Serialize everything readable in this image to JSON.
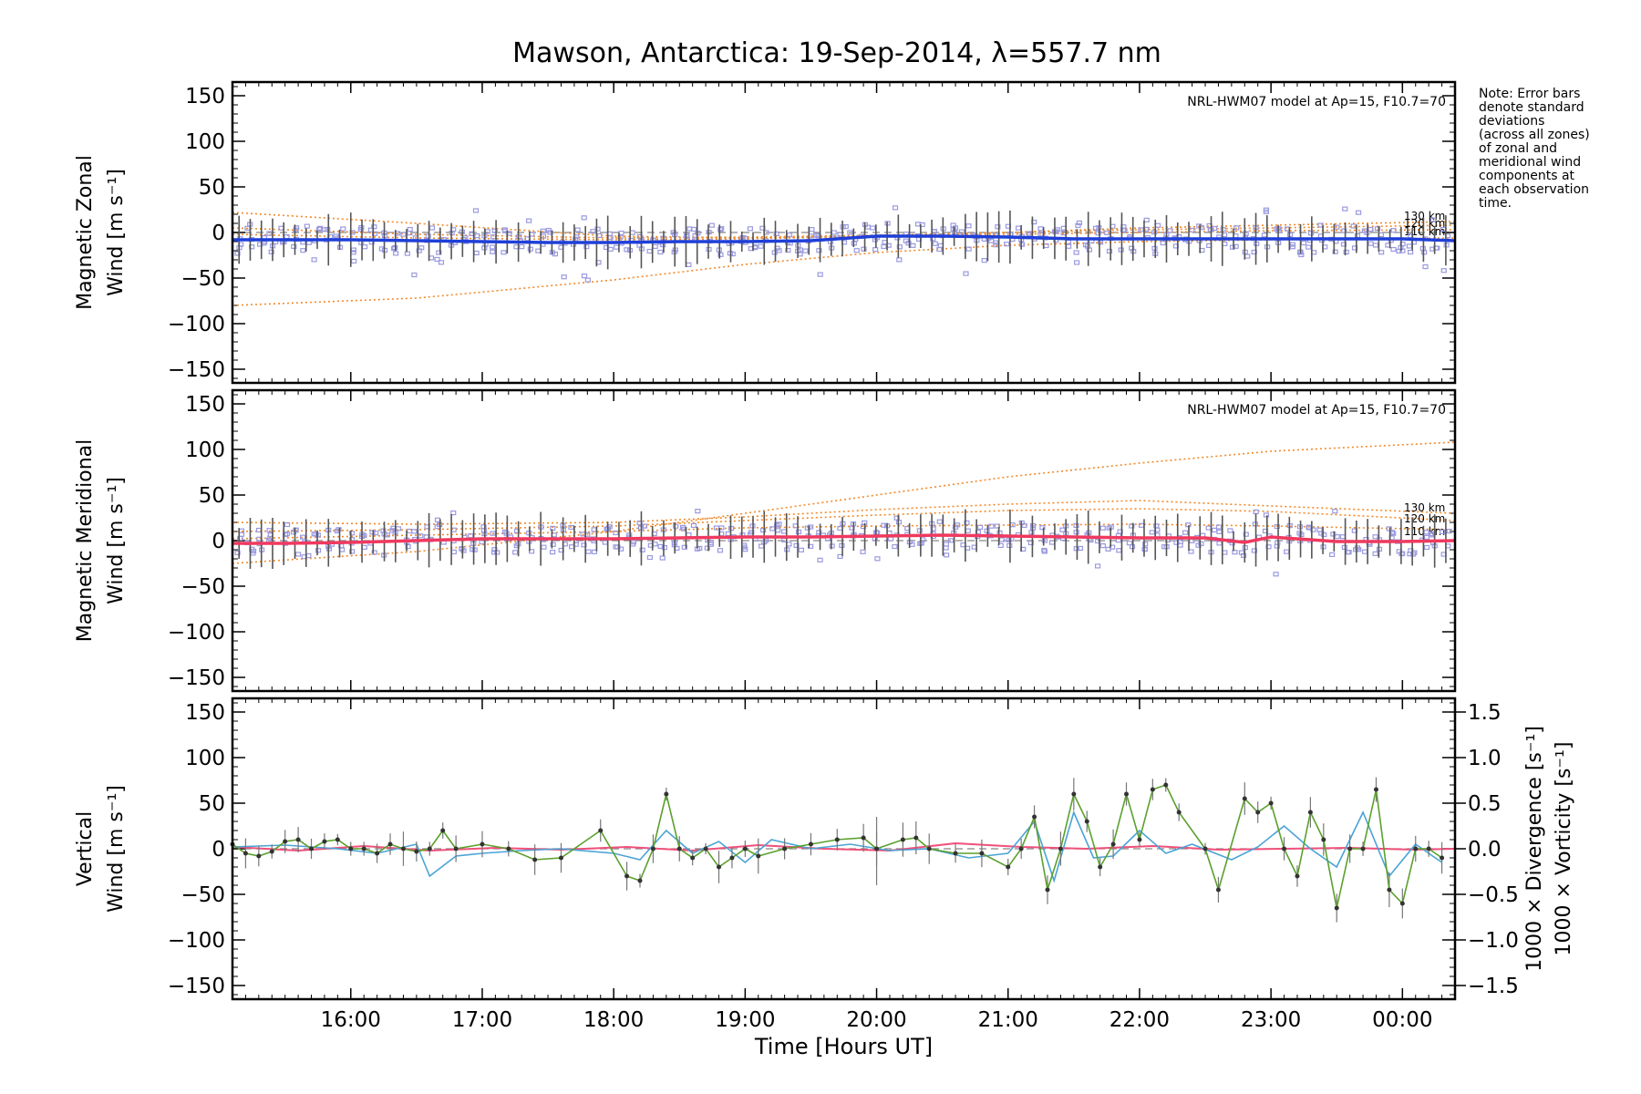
{
  "title": "Mawson, Antarctica: 19-Sep-2014, λ=557.7 nm",
  "note_lines": [
    "Note: Error bars",
    "denote standard",
    "deviations",
    "(across all zones)",
    "of zonal and",
    "meridional wind",
    "components at",
    "each observation",
    "time."
  ],
  "colors": {
    "zonal": "#1f3fd8",
    "meridional": "#f0395f",
    "model": "#f28a2a",
    "vertical": "#5aa02c",
    "divergence": "#4aa3d6",
    "vorticity": "#f0507a",
    "zone_points": "#9a9ae0"
  },
  "chart_data": [
    {
      "type": "line",
      "panel": "zonal",
      "ylabel_line1": "Magnetic Zonal",
      "ylabel_line2": "Wind [m s⁻¹]",
      "ylim": [
        -165,
        165
      ],
      "yticks": [
        -150,
        -100,
        -50,
        0,
        50,
        100,
        150
      ],
      "model_label": "NRL-HWM07 model at Ap=15, F10.7=70",
      "model_alt_labels": [
        "130 km",
        "120 km",
        "110 km"
      ],
      "series": [
        {
          "x": [
            15.1,
            15.5,
            16.0,
            16.5,
            17.0,
            17.5,
            18.0,
            18.5,
            19.0,
            19.5,
            20.0,
            20.5,
            21.0,
            21.5,
            22.0,
            22.5,
            23.0,
            23.5,
            24.0,
            24.4
          ],
          "values": [
            -8,
            -8,
            -8,
            -9,
            -10,
            -11,
            -11,
            -10,
            -10,
            -9,
            -4,
            -4,
            -5,
            -7,
            -7,
            -7,
            -7,
            -7,
            -7,
            -9
          ]
        }
      ],
      "model_curves": [
        {
          "x": [
            15.1,
            16.5,
            18.0,
            19.0,
            20.0,
            21.0,
            22.0,
            23.0,
            24.4
          ],
          "values": [
            -80,
            -72,
            -52,
            -35,
            -22,
            -14,
            -10,
            -8,
            -6
          ]
        },
        {
          "x": [
            15.1,
            16.5,
            18.0,
            19.0,
            20.0,
            21.0,
            22.0,
            23.0,
            24.4
          ],
          "values": [
            22,
            10,
            -4,
            -6,
            -4,
            0,
            5,
            8,
            12
          ]
        },
        {
          "x": [
            15.1,
            16.5,
            18.0,
            19.0,
            20.0,
            21.0,
            22.0,
            23.0,
            24.4
          ],
          "values": [
            5,
            -2,
            -6,
            -5,
            -3,
            0,
            3,
            5,
            8
          ]
        },
        {
          "x": [
            15.1,
            16.5,
            18.0,
            19.0,
            20.0,
            21.0,
            22.0,
            23.0,
            24.4
          ],
          "values": [
            -2,
            -6,
            -8,
            -7,
            -4,
            -2,
            0,
            2,
            3
          ]
        }
      ]
    },
    {
      "type": "line",
      "panel": "meridional",
      "ylabel_line1": "Magnetic Meridional",
      "ylabel_line2": "Wind [m s⁻¹]",
      "ylim": [
        -165,
        165
      ],
      "yticks": [
        -150,
        -100,
        -50,
        0,
        50,
        100,
        150
      ],
      "model_label": "NRL-HWM07 model at Ap=15, F10.7=70",
      "model_alt_labels": [
        "130 km",
        "120 km",
        "110 km"
      ],
      "series": [
        {
          "x": [
            15.1,
            15.5,
            16.0,
            16.5,
            17.0,
            17.5,
            18.0,
            18.5,
            19.0,
            19.5,
            20.0,
            20.5,
            21.0,
            21.5,
            22.0,
            22.5,
            22.8,
            23.0,
            23.5,
            24.0,
            24.4
          ],
          "values": [
            -3,
            -3,
            -2,
            0,
            2,
            2,
            2,
            3,
            4,
            4,
            5,
            6,
            5,
            4,
            3,
            3,
            -2,
            4,
            -1,
            -1,
            0
          ]
        }
      ],
      "model_curves": [
        {
          "x": [
            15.1,
            16.5,
            18.0,
            19.0,
            20.0,
            21.0,
            22.0,
            23.0,
            24.4
          ],
          "values": [
            -25,
            -12,
            10,
            30,
            50,
            70,
            85,
            98,
            108
          ]
        },
        {
          "x": [
            15.1,
            16.5,
            18.0,
            19.0,
            20.0,
            21.0,
            22.0,
            23.0,
            24.4
          ],
          "values": [
            20,
            18,
            20,
            26,
            34,
            40,
            44,
            38,
            30
          ]
        },
        {
          "x": [
            15.1,
            16.5,
            18.0,
            19.0,
            20.0,
            21.0,
            22.0,
            23.0,
            24.4
          ],
          "values": [
            10,
            12,
            16,
            22,
            28,
            33,
            35,
            32,
            22
          ]
        },
        {
          "x": [
            15.1,
            16.5,
            18.0,
            19.0,
            20.0,
            21.0,
            22.0,
            23.0,
            24.4
          ],
          "values": [
            2,
            6,
            10,
            14,
            16,
            17,
            18,
            16,
            12
          ]
        }
      ]
    },
    {
      "type": "line",
      "panel": "vertical",
      "ylabel_line1": "Vertical",
      "ylabel_line2": "Wind [m s⁻¹]",
      "y2label_div": "1000 × Divergence [s⁻¹]",
      "y2label_vort": "1000 × Vorticity [s⁻¹]",
      "ylim": [
        -165,
        165
      ],
      "yticks": [
        -150,
        -100,
        -50,
        0,
        50,
        100,
        150
      ],
      "y2lim": [
        -1.65,
        1.65
      ],
      "y2ticks": [
        -1.5,
        -1.0,
        -0.5,
        0.0,
        0.5,
        1.0,
        1.5
      ],
      "xlabel": "Time [Hours UT]",
      "xlim": [
        15.1,
        24.4
      ],
      "xticks": [
        16,
        17,
        18,
        19,
        20,
        21,
        22,
        23,
        24
      ],
      "xticklabels": [
        "16:00",
        "17:00",
        "18:00",
        "19:00",
        "20:00",
        "21:00",
        "22:00",
        "23:00",
        "00:00"
      ],
      "series": [
        {
          "name": "vertical",
          "x": [
            15.1,
            15.2,
            15.3,
            15.4,
            15.5,
            15.6,
            15.7,
            15.8,
            15.9,
            16.0,
            16.1,
            16.2,
            16.3,
            16.4,
            16.5,
            16.6,
            16.7,
            16.8,
            17.0,
            17.2,
            17.4,
            17.6,
            17.9,
            18.1,
            18.2,
            18.3,
            18.4,
            18.5,
            18.6,
            18.7,
            18.8,
            18.9,
            19.0,
            19.1,
            19.3,
            19.5,
            19.7,
            19.9,
            20.0,
            20.2,
            20.3,
            20.4,
            20.6,
            20.8,
            21.0,
            21.1,
            21.2,
            21.3,
            21.4,
            21.5,
            21.6,
            21.7,
            21.8,
            21.9,
            22.0,
            22.1,
            22.2,
            22.3,
            22.5,
            22.6,
            22.8,
            22.9,
            23.0,
            23.1,
            23.2,
            23.3,
            23.4,
            23.5,
            23.6,
            23.7,
            23.8,
            23.9,
            24.0,
            24.1,
            24.2,
            24.3
          ],
          "values": [
            5,
            -5,
            -8,
            -3,
            8,
            10,
            0,
            8,
            10,
            0,
            0,
            -5,
            5,
            0,
            -3,
            0,
            20,
            0,
            5,
            0,
            -12,
            -10,
            20,
            -30,
            -35,
            0,
            60,
            0,
            -10,
            0,
            -20,
            -10,
            0,
            -8,
            0,
            5,
            10,
            12,
            0,
            10,
            12,
            0,
            -5,
            -5,
            -20,
            0,
            35,
            -45,
            0,
            60,
            30,
            -20,
            5,
            60,
            10,
            65,
            70,
            40,
            0,
            -45,
            55,
            40,
            50,
            0,
            -30,
            40,
            10,
            -65,
            0,
            0,
            65,
            -45,
            -60,
            0,
            0,
            -10
          ]
        },
        {
          "name": "divergence",
          "x": [
            15.1,
            15.5,
            15.9,
            16.2,
            16.5,
            16.6,
            16.8,
            17.0,
            17.3,
            17.6,
            18.0,
            18.2,
            18.4,
            18.6,
            18.8,
            19.0,
            19.2,
            19.5,
            19.8,
            20.1,
            20.4,
            20.7,
            21.0,
            21.2,
            21.35,
            21.5,
            21.65,
            21.8,
            22.0,
            22.2,
            22.4,
            22.7,
            22.9,
            23.1,
            23.3,
            23.5,
            23.7,
            23.9,
            24.1,
            24.3
          ],
          "values": [
            0.02,
            0.04,
            0.0,
            -0.05,
            0.05,
            -0.3,
            -0.08,
            -0.05,
            -0.02,
            0.0,
            -0.05,
            -0.12,
            0.2,
            -0.05,
            0.08,
            -0.15,
            0.1,
            0.0,
            0.05,
            -0.02,
            0.0,
            -0.1,
            -0.05,
            0.3,
            -0.35,
            0.4,
            -0.1,
            -0.08,
            0.2,
            -0.05,
            0.05,
            -0.12,
            0.02,
            0.25,
            0.0,
            -0.2,
            0.4,
            -0.3,
            0.05,
            -0.15
          ]
        },
        {
          "name": "vorticity",
          "x": [
            15.1,
            15.6,
            16.1,
            16.6,
            17.1,
            17.6,
            18.1,
            18.6,
            19.1,
            19.6,
            20.1,
            20.6,
            21.1,
            21.6,
            22.1,
            22.6,
            23.1,
            23.6,
            24.1,
            24.4
          ],
          "values": [
            0.02,
            -0.02,
            0.03,
            -0.02,
            0.01,
            -0.01,
            0.02,
            -0.02,
            0.04,
            0.0,
            -0.02,
            0.06,
            0.02,
            0.0,
            0.03,
            -0.01,
            0.0,
            0.01,
            -0.01,
            0.0
          ]
        }
      ]
    }
  ]
}
